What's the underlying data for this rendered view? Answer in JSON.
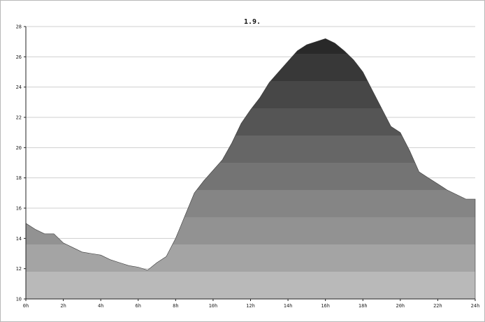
{
  "chart_data": {
    "type": "area",
    "title": "1.9.",
    "xlabel": "",
    "ylabel": "",
    "xlim": [
      0,
      24
    ],
    "ylim": [
      10,
      28
    ],
    "grid": true,
    "x_ticks": [
      {
        "v": 0,
        "label": "0h"
      },
      {
        "v": 2,
        "label": "2h"
      },
      {
        "v": 4,
        "label": "4h"
      },
      {
        "v": 6,
        "label": "6h"
      },
      {
        "v": 8,
        "label": "8h"
      },
      {
        "v": 10,
        "label": "10h"
      },
      {
        "v": 12,
        "label": "12h"
      },
      {
        "v": 14,
        "label": "14h"
      },
      {
        "v": 16,
        "label": "16h"
      },
      {
        "v": 18,
        "label": "18h"
      },
      {
        "v": 20,
        "label": "20h"
      },
      {
        "v": 22,
        "label": "22h"
      },
      {
        "v": 24,
        "label": "24h"
      }
    ],
    "y_ticks": [
      {
        "v": 10,
        "label": "10"
      },
      {
        "v": 12,
        "label": "12"
      },
      {
        "v": 14,
        "label": "14"
      },
      {
        "v": 16,
        "label": "16"
      },
      {
        "v": 18,
        "label": "18"
      },
      {
        "v": 20,
        "label": "20"
      },
      {
        "v": 22,
        "label": "22"
      },
      {
        "v": 24,
        "label": "24"
      },
      {
        "v": 26,
        "label": "26"
      },
      {
        "v": 28,
        "label": "28"
      }
    ],
    "band_colors": [
      "#b9b9b9",
      "#a4a4a4",
      "#929292",
      "#858585",
      "#747474",
      "#666666",
      "#555555",
      "#474747",
      "#383838",
      "#292929",
      "#1b1b1b",
      "#080808"
    ],
    "series": [
      {
        "x": [
          0,
          0.5,
          1,
          1.5,
          2,
          2.5,
          3,
          3.5,
          4,
          4.5,
          5,
          5.5,
          6,
          6.5,
          7,
          7.5,
          8,
          8.5,
          9,
          9.5,
          10,
          10.5,
          11,
          11.5,
          12,
          12.5,
          13,
          13.5,
          14,
          14.5,
          15,
          15.5,
          16,
          16.5,
          17,
          17.5,
          18,
          18.5,
          19,
          19.5,
          20,
          20.5,
          21,
          21.5,
          22,
          22.5,
          23,
          23.5,
          24
        ],
        "y": [
          15.0,
          14.6,
          14.3,
          14.3,
          13.7,
          13.4,
          13.1,
          13.0,
          12.9,
          12.6,
          12.4,
          12.2,
          12.1,
          11.9,
          12.4,
          12.8,
          14.0,
          15.5,
          17.0,
          17.8,
          18.5,
          19.2,
          20.3,
          21.6,
          22.5,
          23.3,
          24.3,
          25.0,
          25.7,
          26.4,
          26.8,
          27.0,
          27.2,
          26.9,
          26.4,
          25.8,
          25.0,
          23.8,
          22.6,
          21.4,
          21.0,
          19.8,
          18.4,
          18.0,
          17.6,
          17.2,
          16.9,
          16.6,
          16.6
        ]
      }
    ]
  }
}
